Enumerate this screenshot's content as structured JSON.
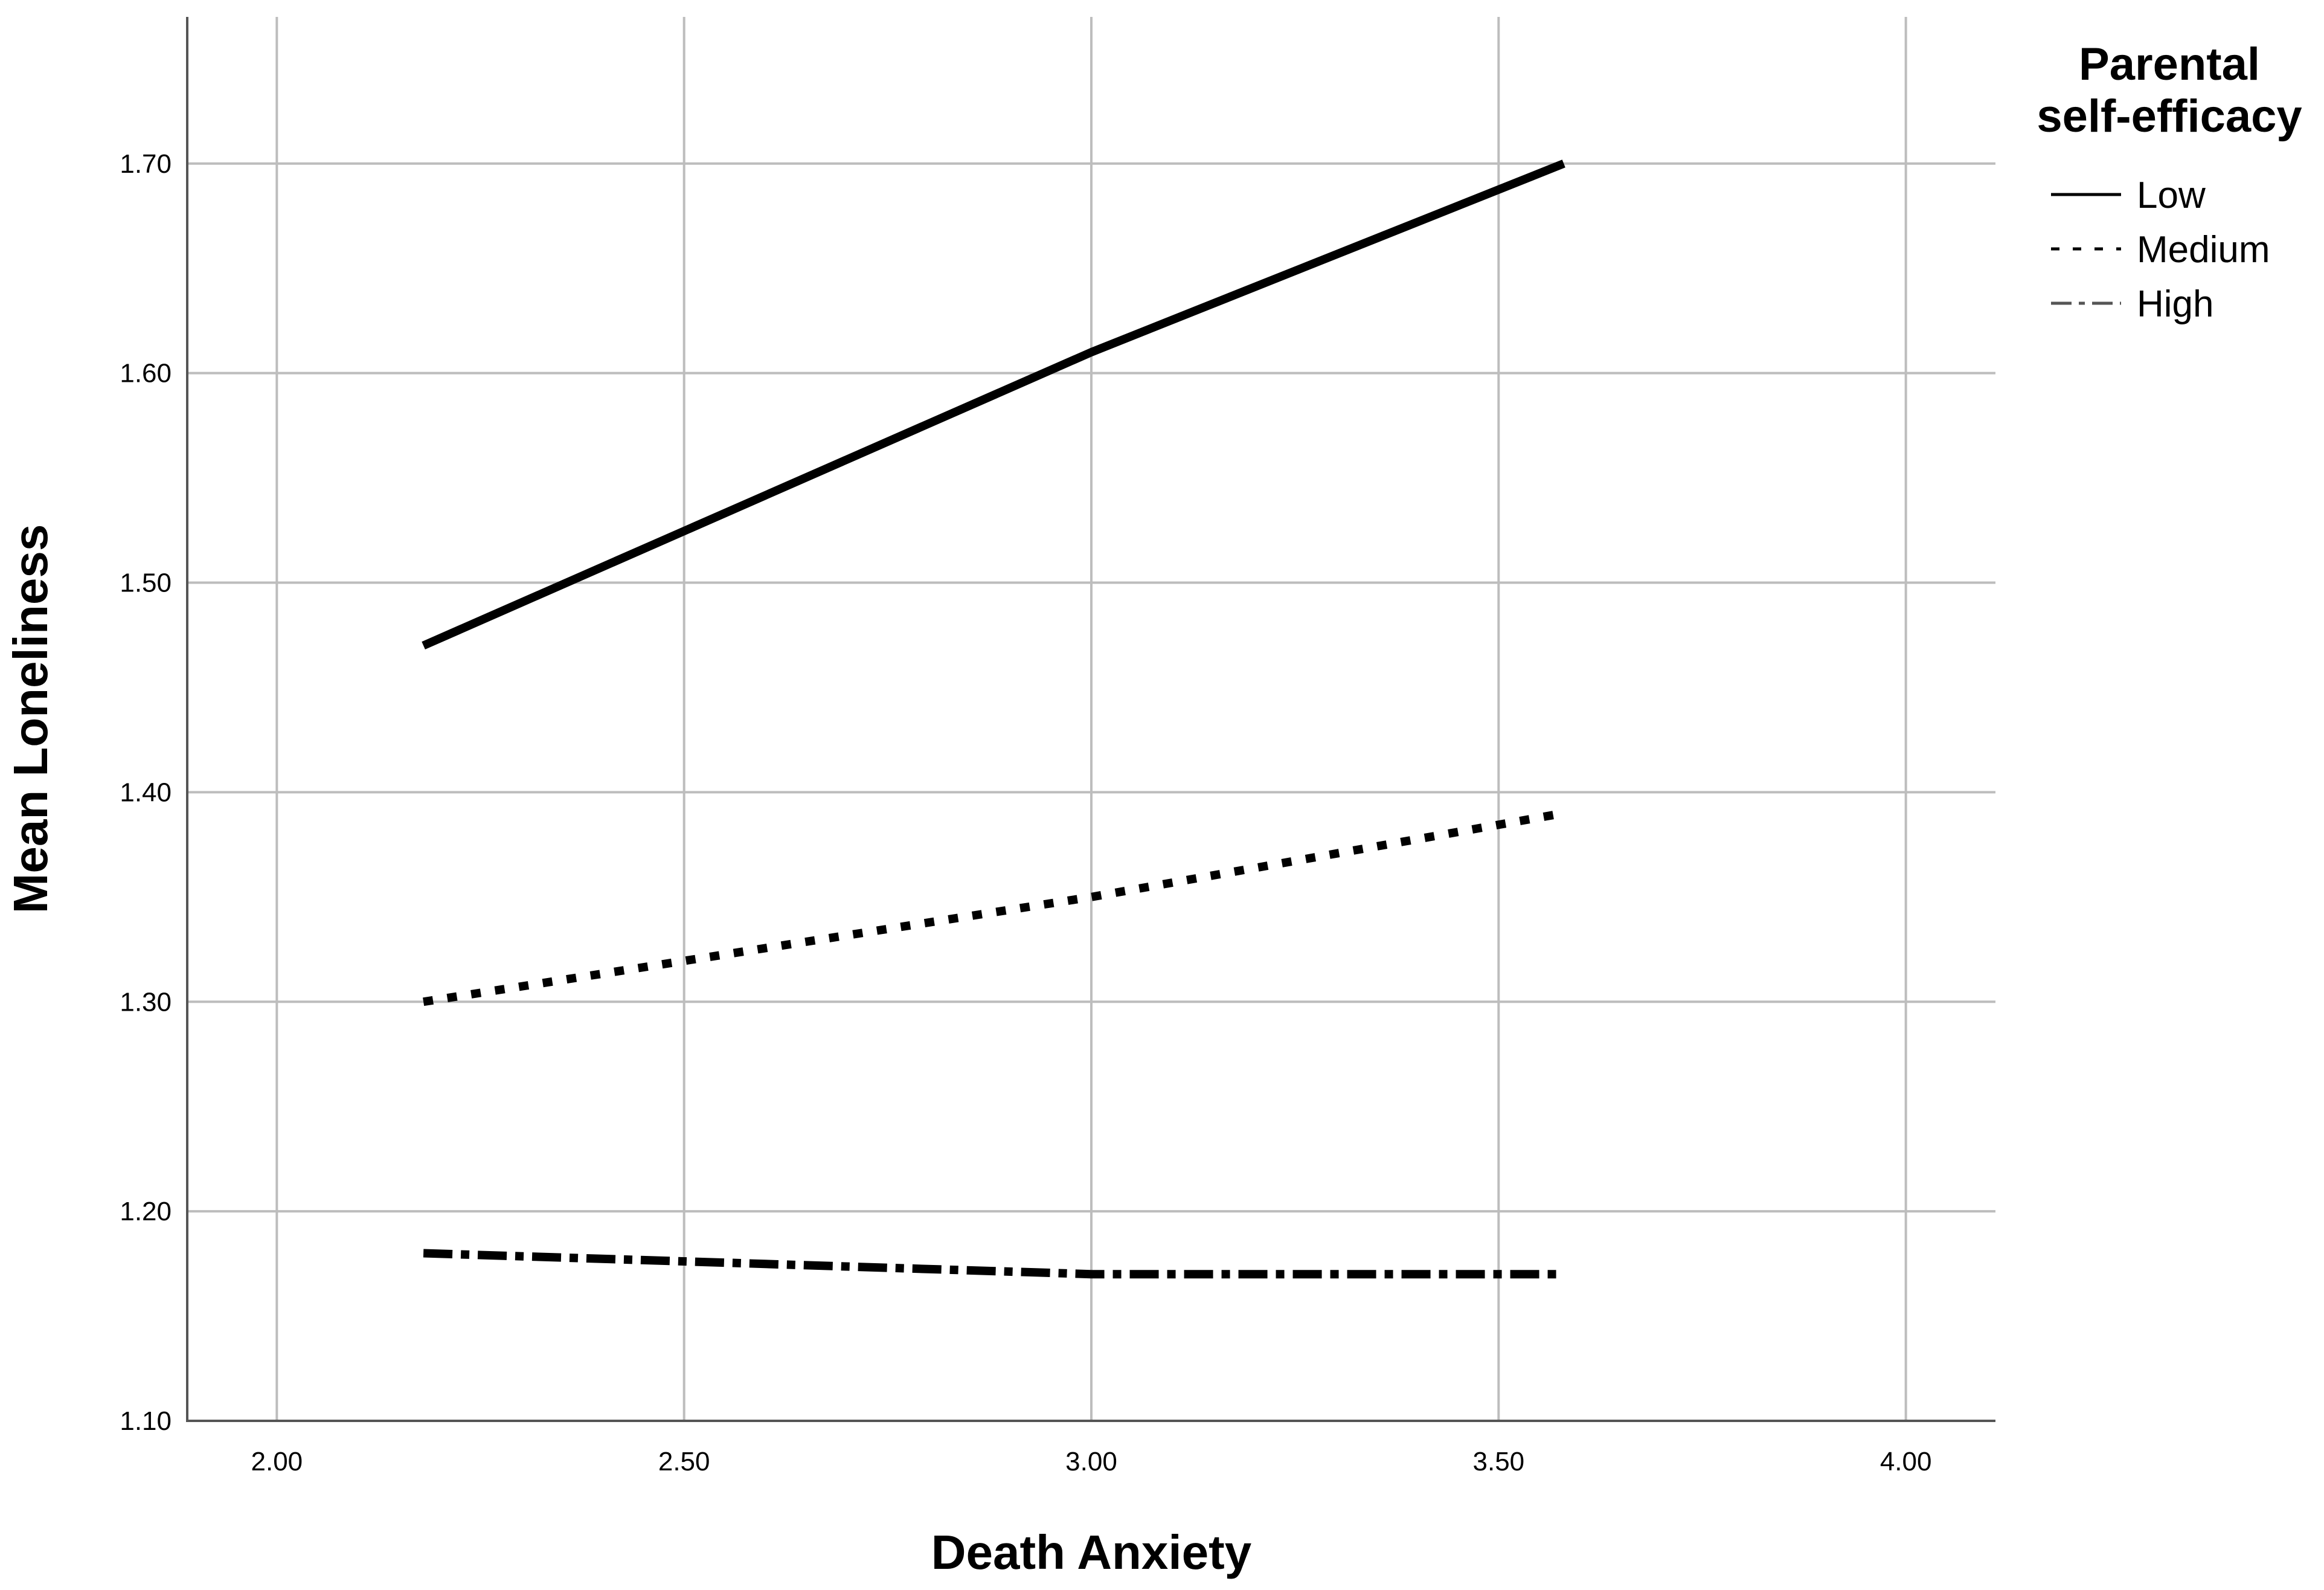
{
  "chart_data": {
    "type": "line",
    "xlabel": "Death Anxiety",
    "ylabel": "Mean Loneliness",
    "xlim": [
      1.89,
      4.11
    ],
    "ylim": [
      1.1,
      1.77
    ],
    "x_ticks": [
      "2.00",
      "2.50",
      "3.00",
      "3.50",
      "4.00"
    ],
    "x_tick_values": [
      2.0,
      2.5,
      3.0,
      3.5,
      4.0
    ],
    "y_ticks": [
      "1.10",
      "1.20",
      "1.30",
      "1.40",
      "1.50",
      "1.60",
      "1.70"
    ],
    "y_tick_values": [
      1.1,
      1.2,
      1.3,
      1.4,
      1.5,
      1.6,
      1.7
    ],
    "grid": true,
    "legend": {
      "title_lines": [
        "Parental",
        "self-efficacy"
      ],
      "placement": "right"
    },
    "series": [
      {
        "name": "Low",
        "style": "solid",
        "color": "#000000",
        "x": [
          2.18,
          3.0,
          3.58
        ],
        "y": [
          1.47,
          1.61,
          1.7
        ]
      },
      {
        "name": "Medium",
        "style": "dotted",
        "color": "#000000",
        "x": [
          2.18,
          3.0,
          3.58
        ],
        "y": [
          1.3,
          1.35,
          1.39
        ]
      },
      {
        "name": "High",
        "style": "dashdot",
        "color": "#000000",
        "x": [
          2.18,
          3.0,
          3.58
        ],
        "y": [
          1.18,
          1.17,
          1.17
        ]
      }
    ]
  }
}
